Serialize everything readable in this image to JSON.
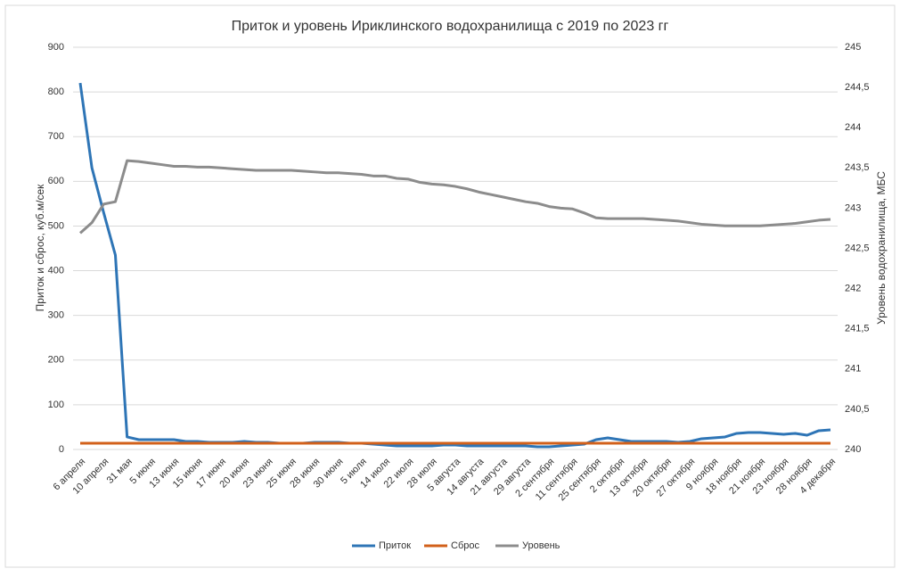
{
  "chart_data": {
    "type": "line",
    "title": "Приток и уровень Ириклинского водохранилища с 2019 по 2023 гг",
    "y_label": "Приток и сброс, куб.м/сек",
    "y2_label": "Уровень водохранилища, МБС",
    "categories": [
      "6 апреля",
      null,
      "10 апреля",
      null,
      "31 мая",
      null,
      "5 июня",
      null,
      "13 июня",
      null,
      "15 июня",
      null,
      "17 июня",
      null,
      "20 июня",
      null,
      "23 июня",
      null,
      "25 июня",
      null,
      "28 июня",
      null,
      "30 июня",
      null,
      "5 июля",
      null,
      "14 июля",
      null,
      "22 июля",
      null,
      "28 июля",
      null,
      "5 августа",
      null,
      "14 августа",
      null,
      "21 августа",
      null,
      "29 августа",
      null,
      "2 сентября",
      null,
      "11 сентября",
      null,
      "25 сентября",
      null,
      "2 октября",
      null,
      "13 октября",
      null,
      "20 октября",
      null,
      "27 октября",
      null,
      "9 ноября",
      null,
      "18 ноября",
      null,
      "21 ноября",
      null,
      "23 ноября",
      null,
      "28 ноября",
      null,
      "4 декабря"
    ],
    "series": [
      {
        "name": "Приток",
        "color": "#2e75b6",
        "values": [
          820,
          630,
          530,
          435,
          28,
          22,
          22,
          22,
          22,
          18,
          18,
          16,
          16,
          16,
          18,
          16,
          16,
          14,
          14,
          14,
          16,
          16,
          16,
          14,
          14,
          12,
          10,
          8,
          8,
          8,
          8,
          10,
          10,
          8,
          8,
          8,
          8,
          8,
          8,
          6,
          6,
          8,
          10,
          12,
          22,
          26,
          22,
          18,
          18,
          18,
          18,
          16,
          18,
          24,
          26,
          28,
          36,
          38,
          38,
          36,
          34,
          36,
          32,
          42,
          44
        ]
      },
      {
        "name": "Сброс",
        "color": "#d2601a",
        "values": [
          14,
          14,
          14,
          14,
          14,
          14,
          14,
          14,
          14,
          14,
          14,
          14,
          14,
          14,
          14,
          14,
          14,
          14,
          14,
          14,
          14,
          14,
          14,
          14,
          14,
          14,
          14,
          14,
          14,
          14,
          14,
          14,
          14,
          14,
          14,
          14,
          14,
          14,
          14,
          14,
          14,
          14,
          14,
          14,
          14,
          14,
          14,
          14,
          14,
          14,
          14,
          14,
          14,
          14,
          14,
          14,
          14,
          14,
          14,
          14,
          14,
          14,
          14,
          14,
          14
        ]
      },
      {
        "name": "Уровень",
        "color": "#8c8c8c",
        "axis": "y2",
        "values": [
          242.69,
          242.82,
          243.05,
          243.08,
          243.59,
          243.58,
          243.56,
          243.54,
          243.52,
          243.52,
          243.51,
          243.51,
          243.5,
          243.49,
          243.48,
          243.47,
          243.47,
          243.47,
          243.47,
          243.46,
          243.45,
          243.44,
          243.44,
          243.43,
          243.42,
          243.4,
          243.4,
          243.37,
          243.36,
          243.32,
          243.3,
          243.29,
          243.27,
          243.24,
          243.2,
          243.17,
          243.14,
          243.11,
          243.08,
          243.06,
          243.02,
          243.0,
          242.99,
          242.94,
          242.88,
          242.87,
          242.87,
          242.87,
          242.87,
          242.86,
          242.85,
          242.84,
          242.82,
          242.8,
          242.79,
          242.78,
          242.78,
          242.78,
          242.78,
          242.79,
          242.8,
          242.81,
          242.83,
          242.85,
          242.86
        ]
      }
    ],
    "ylim": [
      0,
      900
    ],
    "yticks": [
      0,
      100,
      200,
      300,
      400,
      500,
      600,
      700,
      800,
      900
    ],
    "y2lim": [
      240,
      245
    ],
    "y2ticks": [
      240,
      {
        "value": 240.5,
        "label": "240,5"
      },
      241,
      {
        "value": 241.5,
        "label": "241,5"
      },
      242,
      {
        "value": 242.5,
        "label": "242,5"
      },
      243,
      {
        "value": 243.5,
        "label": "243,5"
      },
      244,
      {
        "value": 244.5,
        "label": "244,5"
      },
      245
    ],
    "grid": true,
    "legend": "bottom"
  }
}
